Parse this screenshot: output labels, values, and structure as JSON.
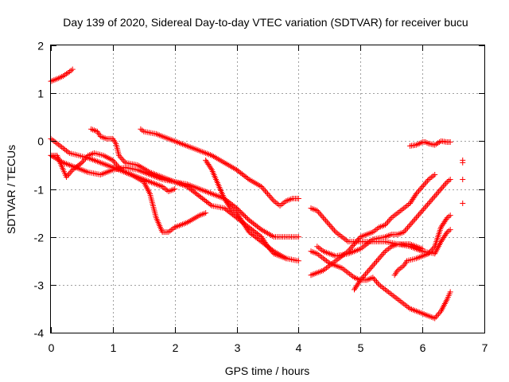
{
  "chart_data": {
    "type": "scatter",
    "title": "Day 139 of 2020, Sidereal Day-to-day VTEC variation (SDTVAR) for receiver bucu",
    "xlabel": "GPS time / hours",
    "ylabel": "SDTVAR / TECUs",
    "xlim": [
      0,
      7
    ],
    "ylim": [
      -4,
      2
    ],
    "x_ticks": [
      0,
      1,
      2,
      3,
      4,
      5,
      6,
      7
    ],
    "y_ticks": [
      -4,
      -3,
      -2,
      -1,
      0,
      1,
      2
    ],
    "x_tick_labels": [
      "0",
      "1",
      "2",
      "3",
      "4",
      "5",
      "6",
      "7"
    ],
    "y_tick_labels": [
      "-4",
      "-3",
      "-2",
      "-1",
      "0",
      "1",
      "2"
    ],
    "grid": true,
    "marker": "plus",
    "color": "#ff0000",
    "series": [
      {
        "points": [
          [
            0.0,
            1.25
          ],
          [
            0.1,
            1.3
          ],
          [
            0.2,
            1.36
          ],
          [
            0.3,
            1.45
          ],
          [
            0.35,
            1.5
          ]
        ]
      },
      {
        "points": [
          [
            0.0,
            0.05
          ],
          [
            0.1,
            -0.05
          ],
          [
            0.2,
            -0.15
          ],
          [
            0.3,
            -0.25
          ],
          [
            0.45,
            -0.3
          ],
          [
            0.6,
            -0.35
          ],
          [
            0.8,
            -0.45
          ],
          [
            1.0,
            -0.55
          ],
          [
            1.2,
            -0.65
          ],
          [
            1.4,
            -0.75
          ],
          [
            1.6,
            -0.85
          ],
          [
            1.8,
            -0.95
          ],
          [
            1.9,
            -1.05
          ],
          [
            2.0,
            -1.0
          ]
        ]
      },
      {
        "points": [
          [
            0.0,
            -0.3
          ],
          [
            0.1,
            -0.3
          ],
          [
            0.2,
            -0.6
          ],
          [
            0.25,
            -0.75
          ],
          [
            0.35,
            -0.6
          ],
          [
            0.5,
            -0.45
          ],
          [
            0.6,
            -0.3
          ],
          [
            0.7,
            -0.25
          ],
          [
            0.85,
            -0.3
          ],
          [
            1.0,
            -0.4
          ],
          [
            1.1,
            -0.55
          ],
          [
            1.2,
            -0.65
          ],
          [
            1.3,
            -0.7
          ],
          [
            1.5,
            -0.85
          ],
          [
            1.6,
            -1.1
          ],
          [
            1.7,
            -1.6
          ],
          [
            1.8,
            -1.9
          ],
          [
            1.9,
            -1.9
          ],
          [
            2.0,
            -1.8
          ],
          [
            2.2,
            -1.7
          ],
          [
            2.4,
            -1.55
          ],
          [
            2.5,
            -1.5
          ]
        ]
      },
      {
        "points": [
          [
            0.0,
            -0.3
          ],
          [
            0.2,
            -0.45
          ],
          [
            0.4,
            -0.55
          ],
          [
            0.6,
            -0.65
          ],
          [
            0.8,
            -0.7
          ],
          [
            1.0,
            -0.6
          ],
          [
            1.2,
            -0.55
          ],
          [
            1.4,
            -0.6
          ],
          [
            1.6,
            -0.7
          ],
          [
            1.8,
            -0.8
          ],
          [
            2.0,
            -0.85
          ],
          [
            2.2,
            -0.9
          ],
          [
            2.4,
            -1.0
          ],
          [
            2.6,
            -1.1
          ],
          [
            2.8,
            -1.2
          ],
          [
            3.0,
            -1.4
          ],
          [
            3.2,
            -1.65
          ],
          [
            3.4,
            -1.85
          ],
          [
            3.6,
            -2.0
          ],
          [
            3.8,
            -2.0
          ],
          [
            4.0,
            -2.0
          ]
        ]
      },
      {
        "points": [
          [
            0.65,
            0.25
          ],
          [
            0.75,
            0.2
          ],
          [
            0.8,
            0.1
          ],
          [
            0.9,
            0.05
          ],
          [
            1.0,
            0.05
          ],
          [
            1.05,
            -0.05
          ],
          [
            1.1,
            -0.3
          ],
          [
            1.2,
            -0.45
          ],
          [
            1.4,
            -0.5
          ],
          [
            1.6,
            -0.65
          ],
          [
            1.8,
            -0.75
          ],
          [
            2.0,
            -0.85
          ],
          [
            2.2,
            -0.95
          ],
          [
            2.4,
            -1.15
          ],
          [
            2.6,
            -1.35
          ],
          [
            2.8,
            -1.4
          ],
          [
            3.0,
            -1.6
          ],
          [
            3.2,
            -1.8
          ],
          [
            3.4,
            -2.0
          ],
          [
            3.5,
            -2.2
          ],
          [
            3.6,
            -2.35
          ],
          [
            3.8,
            -2.45
          ],
          [
            4.0,
            -2.5
          ]
        ]
      },
      {
        "points": [
          [
            1.45,
            0.25
          ],
          [
            1.5,
            0.2
          ],
          [
            1.7,
            0.15
          ],
          [
            1.9,
            0.05
          ],
          [
            2.0,
            0.0
          ],
          [
            2.2,
            -0.1
          ],
          [
            2.4,
            -0.2
          ],
          [
            2.6,
            -0.3
          ],
          [
            2.8,
            -0.45
          ],
          [
            3.0,
            -0.6
          ],
          [
            3.2,
            -0.8
          ],
          [
            3.4,
            -0.95
          ],
          [
            3.5,
            -1.1
          ],
          [
            3.6,
            -1.25
          ],
          [
            3.7,
            -1.35
          ],
          [
            3.8,
            -1.25
          ],
          [
            3.9,
            -1.2
          ],
          [
            4.0,
            -1.2
          ]
        ]
      },
      {
        "points": [
          [
            2.5,
            -0.4
          ],
          [
            2.6,
            -0.6
          ],
          [
            2.7,
            -0.9
          ],
          [
            2.8,
            -1.2
          ],
          [
            2.9,
            -1.4
          ],
          [
            3.0,
            -1.5
          ],
          [
            3.1,
            -1.7
          ],
          [
            3.2,
            -1.9
          ],
          [
            3.4,
            -2.1
          ],
          [
            3.6,
            -2.3
          ],
          [
            3.8,
            -2.45
          ]
        ]
      },
      {
        "points": [
          [
            4.2,
            -1.4
          ],
          [
            4.3,
            -1.45
          ],
          [
            4.4,
            -1.6
          ],
          [
            4.5,
            -1.75
          ],
          [
            4.6,
            -1.9
          ],
          [
            4.7,
            -2.0
          ],
          [
            4.8,
            -2.1
          ],
          [
            5.0,
            -2.1
          ],
          [
            5.2,
            -2.1
          ],
          [
            5.4,
            -2.1
          ],
          [
            5.6,
            -2.15
          ],
          [
            5.8,
            -2.2
          ],
          [
            6.0,
            -2.3
          ],
          [
            6.2,
            -2.35
          ],
          [
            6.3,
            -2.1
          ],
          [
            6.4,
            -1.9
          ],
          [
            6.45,
            -1.85
          ]
        ]
      },
      {
        "points": [
          [
            4.2,
            -2.8
          ],
          [
            4.3,
            -2.75
          ],
          [
            4.4,
            -2.7
          ],
          [
            4.5,
            -2.6
          ],
          [
            4.6,
            -2.5
          ],
          [
            4.7,
            -2.4
          ],
          [
            4.8,
            -2.3
          ],
          [
            4.9,
            -2.15
          ],
          [
            5.0,
            -2.0
          ],
          [
            5.1,
            -1.95
          ],
          [
            5.2,
            -1.9
          ],
          [
            5.3,
            -1.8
          ],
          [
            5.4,
            -1.75
          ],
          [
            5.5,
            -1.6
          ],
          [
            5.6,
            -1.5
          ],
          [
            5.7,
            -1.4
          ],
          [
            5.8,
            -1.3
          ],
          [
            5.9,
            -1.1
          ],
          [
            6.0,
            -0.95
          ],
          [
            6.1,
            -0.8
          ],
          [
            6.2,
            -0.7
          ]
        ]
      },
      {
        "points": [
          [
            4.2,
            -2.3
          ],
          [
            4.3,
            -2.35
          ],
          [
            4.4,
            -2.45
          ],
          [
            4.5,
            -2.55
          ],
          [
            4.6,
            -2.6
          ],
          [
            4.7,
            -2.65
          ],
          [
            4.8,
            -2.75
          ],
          [
            4.9,
            -2.85
          ],
          [
            5.0,
            -2.9
          ],
          [
            5.1,
            -2.9
          ],
          [
            5.2,
            -2.85
          ],
          [
            5.3,
            -3.0
          ],
          [
            5.4,
            -3.1
          ],
          [
            5.5,
            -3.2
          ],
          [
            5.6,
            -3.3
          ],
          [
            5.7,
            -3.4
          ],
          [
            5.8,
            -3.5
          ],
          [
            5.9,
            -3.55
          ],
          [
            6.0,
            -3.6
          ],
          [
            6.1,
            -3.65
          ],
          [
            6.2,
            -3.7
          ],
          [
            6.3,
            -3.55
          ],
          [
            6.4,
            -3.3
          ],
          [
            6.45,
            -3.15
          ]
        ]
      },
      {
        "points": [
          [
            4.3,
            -2.2
          ],
          [
            4.4,
            -2.3
          ],
          [
            4.6,
            -2.4
          ],
          [
            4.8,
            -2.35
          ],
          [
            5.0,
            -2.25
          ],
          [
            5.1,
            -2.15
          ],
          [
            5.2,
            -2.05
          ],
          [
            5.4,
            -2.0
          ],
          [
            5.5,
            -1.95
          ],
          [
            5.6,
            -1.95
          ],
          [
            5.7,
            -1.9
          ],
          [
            5.8,
            -1.75
          ],
          [
            5.9,
            -1.6
          ],
          [
            6.0,
            -1.45
          ],
          [
            6.1,
            -1.3
          ],
          [
            6.2,
            -1.15
          ],
          [
            6.3,
            -1.0
          ],
          [
            6.4,
            -0.85
          ],
          [
            6.45,
            -0.8
          ]
        ]
      },
      {
        "points": [
          [
            4.9,
            -3.1
          ],
          [
            5.0,
            -2.9
          ],
          [
            5.1,
            -2.75
          ],
          [
            5.2,
            -2.6
          ],
          [
            5.3,
            -2.45
          ],
          [
            5.4,
            -2.3
          ],
          [
            5.5,
            -2.2
          ],
          [
            5.6,
            -2.15
          ],
          [
            5.7,
            -2.15
          ],
          [
            5.8,
            -2.15
          ],
          [
            5.9,
            -2.2
          ],
          [
            6.0,
            -2.25
          ]
        ]
      },
      {
        "points": [
          [
            5.55,
            -2.8
          ],
          [
            5.6,
            -2.7
          ],
          [
            5.7,
            -2.6
          ],
          [
            5.75,
            -2.5
          ],
          [
            5.9,
            -2.45
          ],
          [
            6.0,
            -2.4
          ],
          [
            6.1,
            -2.35
          ],
          [
            6.2,
            -2.2
          ],
          [
            6.25,
            -2.0
          ],
          [
            6.3,
            -1.8
          ],
          [
            6.4,
            -1.6
          ],
          [
            6.45,
            -1.55
          ]
        ]
      },
      {
        "points": [
          [
            5.8,
            -0.1
          ],
          [
            5.9,
            -0.08
          ],
          [
            6.0,
            -0.02
          ],
          [
            6.05,
            -0.02
          ],
          [
            6.1,
            -0.05
          ],
          [
            6.2,
            -0.08
          ],
          [
            6.3,
            0.0
          ],
          [
            6.4,
            -0.02
          ],
          [
            6.45,
            -0.02
          ]
        ]
      },
      {
        "points": [
          [
            6.65,
            -0.4
          ],
          [
            6.65,
            -0.45
          ],
          [
            6.65,
            -0.8
          ],
          [
            6.65,
            -1.3
          ]
        ]
      }
    ]
  }
}
